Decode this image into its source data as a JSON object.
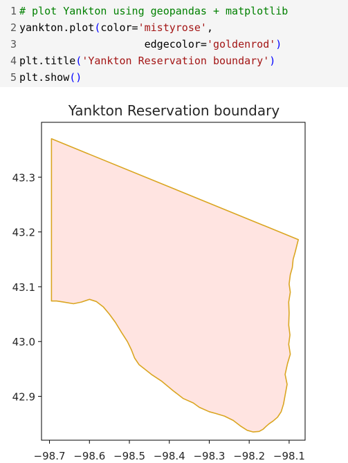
{
  "code": {
    "lines": [
      {
        "n": "1",
        "parts": [
          {
            "t": "# plot Yankton using geopandas + matplotlib",
            "c": "c-comment"
          }
        ]
      },
      {
        "n": "2",
        "parts": [
          {
            "t": "yankton.plot",
            "c": "c-dot"
          },
          {
            "t": "(",
            "c": "c-paren"
          },
          {
            "t": "color=",
            "c": "c-dot"
          },
          {
            "t": "'mistyrose'",
            "c": "c-str"
          },
          {
            "t": ",",
            "c": "c-dot"
          }
        ]
      },
      {
        "n": "3",
        "parts": [
          {
            "t": "                    edgecolor=",
            "c": "c-dot"
          },
          {
            "t": "'goldenrod'",
            "c": "c-str"
          },
          {
            "t": ")",
            "c": "c-paren"
          }
        ]
      },
      {
        "n": "4",
        "parts": [
          {
            "t": "plt.title",
            "c": "c-dot"
          },
          {
            "t": "(",
            "c": "c-paren"
          },
          {
            "t": "'Yankton Reservation boundary'",
            "c": "c-str"
          },
          {
            "t": ")",
            "c": "c-paren"
          }
        ]
      },
      {
        "n": "5",
        "parts": [
          {
            "t": "plt.show",
            "c": "c-dot"
          },
          {
            "t": "()",
            "c": "c-paren"
          }
        ]
      }
    ]
  },
  "chart_data": {
    "type": "area",
    "title": "Yankton Reservation boundary",
    "xlabel": "",
    "ylabel": "",
    "xlim": [
      -98.72,
      -98.06
    ],
    "ylim": [
      42.82,
      43.4
    ],
    "xticks": [
      -98.7,
      -98.6,
      -98.5,
      -98.4,
      -98.3,
      -98.2,
      -98.1
    ],
    "xtick_labels": [
      "−98.7",
      "−98.6",
      "−98.5",
      "−98.4",
      "−98.3",
      "−98.2",
      "−98.1"
    ],
    "yticks": [
      42.9,
      43.0,
      43.1,
      43.2,
      43.3
    ],
    "ytick_labels": [
      "42.9",
      "43.0",
      "43.1",
      "43.2",
      "43.3"
    ],
    "fill_color": "#ffe4e1",
    "edge_color": "#daa520",
    "boundary": [
      [
        -98.695,
        43.37
      ],
      [
        -98.077,
        43.186
      ],
      [
        -98.085,
        43.163
      ],
      [
        -98.09,
        43.15
      ],
      [
        -98.092,
        43.135
      ],
      [
        -98.097,
        43.122
      ],
      [
        -98.1,
        43.105
      ],
      [
        -98.097,
        43.09
      ],
      [
        -98.101,
        43.072
      ],
      [
        -98.1,
        43.052
      ],
      [
        -98.101,
        43.03
      ],
      [
        -98.098,
        43.012
      ],
      [
        -98.101,
        42.995
      ],
      [
        -98.097,
        42.977
      ],
      [
        -98.104,
        42.96
      ],
      [
        -98.11,
        42.94
      ],
      [
        -98.105,
        42.922
      ],
      [
        -98.11,
        42.902
      ],
      [
        -98.114,
        42.886
      ],
      [
        -98.12,
        42.872
      ],
      [
        -98.129,
        42.862
      ],
      [
        -98.14,
        42.855
      ],
      [
        -98.15,
        42.85
      ],
      [
        -98.158,
        42.845
      ],
      [
        -98.165,
        42.84
      ],
      [
        -98.175,
        42.836
      ],
      [
        -98.19,
        42.835
      ],
      [
        -98.205,
        42.838
      ],
      [
        -98.222,
        42.846
      ],
      [
        -98.24,
        42.856
      ],
      [
        -98.262,
        42.864
      ],
      [
        -98.285,
        42.869
      ],
      [
        -98.3,
        42.872
      ],
      [
        -98.325,
        42.88
      ],
      [
        -98.34,
        42.888
      ],
      [
        -98.365,
        42.896
      ],
      [
        -98.39,
        42.91
      ],
      [
        -98.42,
        42.928
      ],
      [
        -98.445,
        42.94
      ],
      [
        -98.462,
        42.95
      ],
      [
        -98.476,
        42.958
      ],
      [
        -98.487,
        42.97
      ],
      [
        -98.495,
        42.985
      ],
      [
        -98.505,
        43.0
      ],
      [
        -98.52,
        43.017
      ],
      [
        -98.535,
        43.035
      ],
      [
        -98.55,
        43.05
      ],
      [
        -98.565,
        43.063
      ],
      [
        -98.583,
        43.073
      ],
      [
        -98.6,
        43.077
      ],
      [
        -98.62,
        43.072
      ],
      [
        -98.64,
        43.069
      ],
      [
        -98.665,
        43.072
      ],
      [
        -98.682,
        43.074
      ],
      [
        -98.695,
        43.074
      ]
    ]
  }
}
